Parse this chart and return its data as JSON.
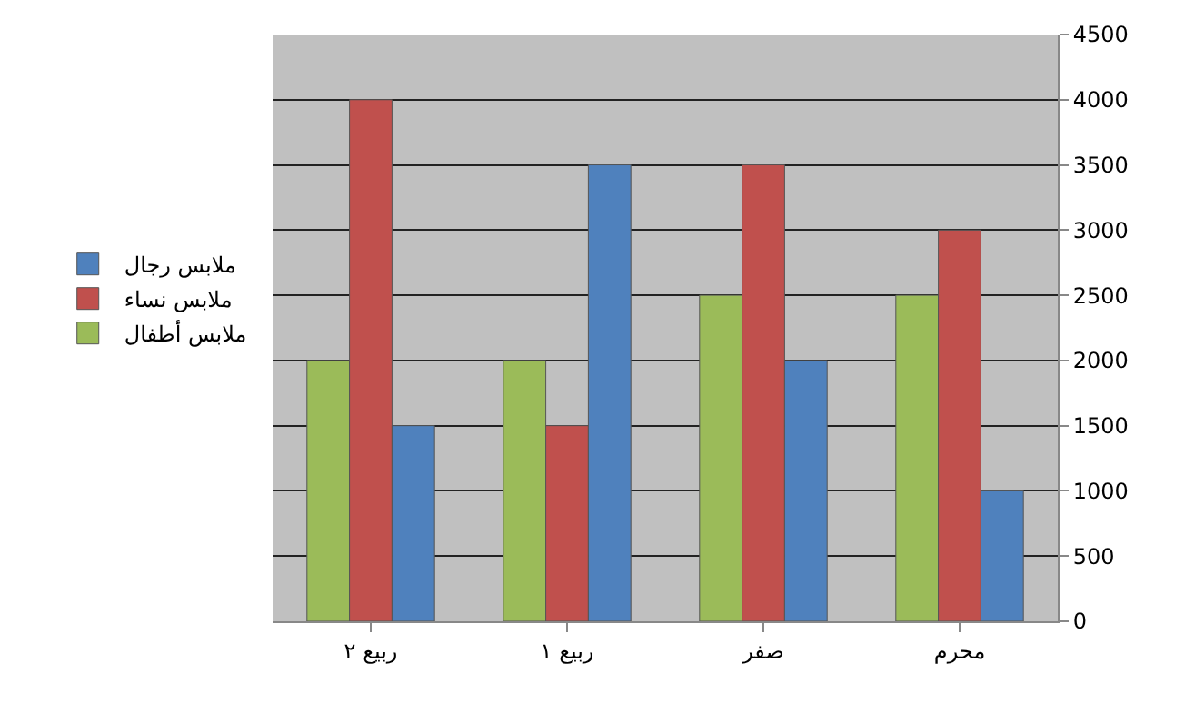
{
  "chart_data": {
    "type": "bar",
    "categories": [
      "ربيع ٢",
      "ربيع ١",
      "صفر",
      "محرم"
    ],
    "series": [
      {
        "name": "ملابس أطفال",
        "color": "#9bbb59",
        "values": [
          2000,
          2000,
          2500,
          2500
        ]
      },
      {
        "name": "ملابس نساء",
        "color": "#c0504d",
        "values": [
          4000,
          1500,
          3500,
          3000
        ]
      },
      {
        "name": "ملابس رجال",
        "color": "#4f81bd",
        "values": [
          1500,
          3500,
          2000,
          1000
        ]
      }
    ],
    "ylim": [
      0,
      4500
    ],
    "yticks": [
      0,
      500,
      1000,
      1500,
      2000,
      2500,
      3000,
      3500,
      4000,
      4500
    ],
    "grid": "y",
    "legend": "left"
  }
}
